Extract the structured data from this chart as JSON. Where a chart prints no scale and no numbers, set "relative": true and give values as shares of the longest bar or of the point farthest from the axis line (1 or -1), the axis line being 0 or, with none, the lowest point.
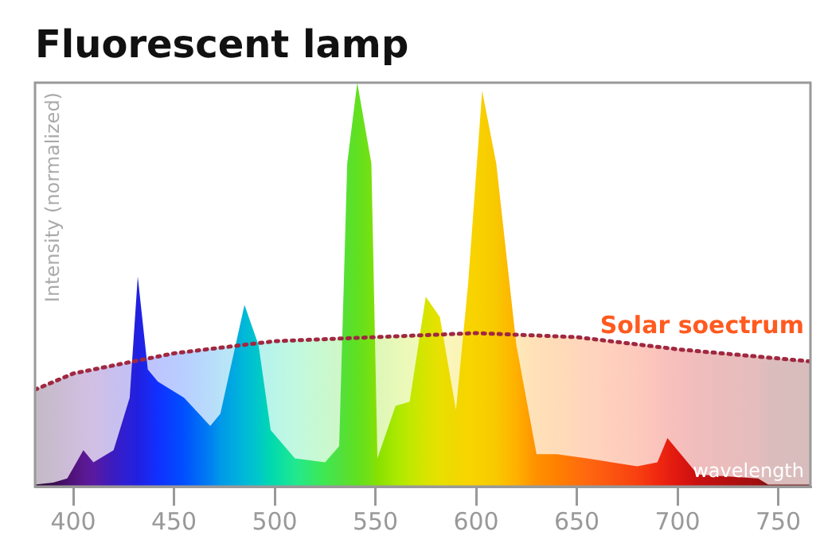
{
  "chart_data": {
    "type": "area",
    "title": "Fluorescent lamp",
    "xlabel": "wavelength",
    "ylabel": "Intensity (normalized)",
    "relative": true,
    "xlim": [
      381,
      766
    ],
    "xticks": [
      400,
      450,
      500,
      550,
      600,
      650,
      700,
      750
    ],
    "tick_labels": "x",
    "series": [
      {
        "x": [
          381,
          390,
          397,
          405,
          410,
          420,
          428,
          432,
          437,
          442,
          455,
          468,
          473,
          485,
          492,
          498,
          510,
          525,
          532,
          536,
          541,
          548,
          551,
          560,
          567,
          575,
          582,
          590,
          596,
          603,
          610,
          620,
          630,
          640,
          655,
          680,
          690,
          695,
          700,
          710,
          740,
          745,
          766
        ],
        "values": [
          0.005,
          0.01,
          0.02,
          0.09,
          0.06,
          0.09,
          0.22,
          0.52,
          0.29,
          0.26,
          0.22,
          0.15,
          0.18,
          0.45,
          0.35,
          0.14,
          0.07,
          0.06,
          0.1,
          0.8,
          1,
          0.8,
          0.07,
          0.2,
          0.21,
          0.47,
          0.42,
          0.19,
          0.5,
          0.98,
          0.8,
          0.35,
          0.08,
          0.08,
          0.07,
          0.05,
          0.06,
          0.12,
          0.09,
          0.03,
          0.02,
          0.005,
          0.005
        ],
        "colors": [
          "#2a0a30",
          "#3a0c50",
          "#4a1070",
          "#5a1890",
          "#5a1aa0",
          "#3a1cc0",
          "#2a20d8",
          "#2020e0",
          "#1a28f0",
          "#1030ff",
          "#0050ff",
          "#0080f0",
          "#0098e8",
          "#00b8d8",
          "#00c8c8",
          "#00d8b0",
          "#20e890",
          "#40e850",
          "#50e040",
          "#58e030",
          "#60e020",
          "#78e010",
          "#88e000",
          "#a8e800",
          "#c0e800",
          "#d8e400",
          "#e8e000",
          "#f0d800",
          "#f8d400",
          "#f8d000",
          "#f8c800",
          "#ffb000",
          "#ff9000",
          "#ff8000",
          "#ff6810",
          "#f84010",
          "#f02810",
          "#e82010",
          "#e01810",
          "#c81010",
          "#a01010",
          "#801010",
          "#701010"
        ]
      },
      {
        "name": "Solar soectrum",
        "color": "#a02840",
        "line_style": "dotted",
        "x": [
          381,
          400,
          450,
          500,
          550,
          600,
          650,
          700,
          766
        ],
        "values": [
          0.24,
          0.28,
          0.33,
          0.36,
          0.37,
          0.38,
          0.37,
          0.34,
          0.31
        ]
      }
    ]
  }
}
